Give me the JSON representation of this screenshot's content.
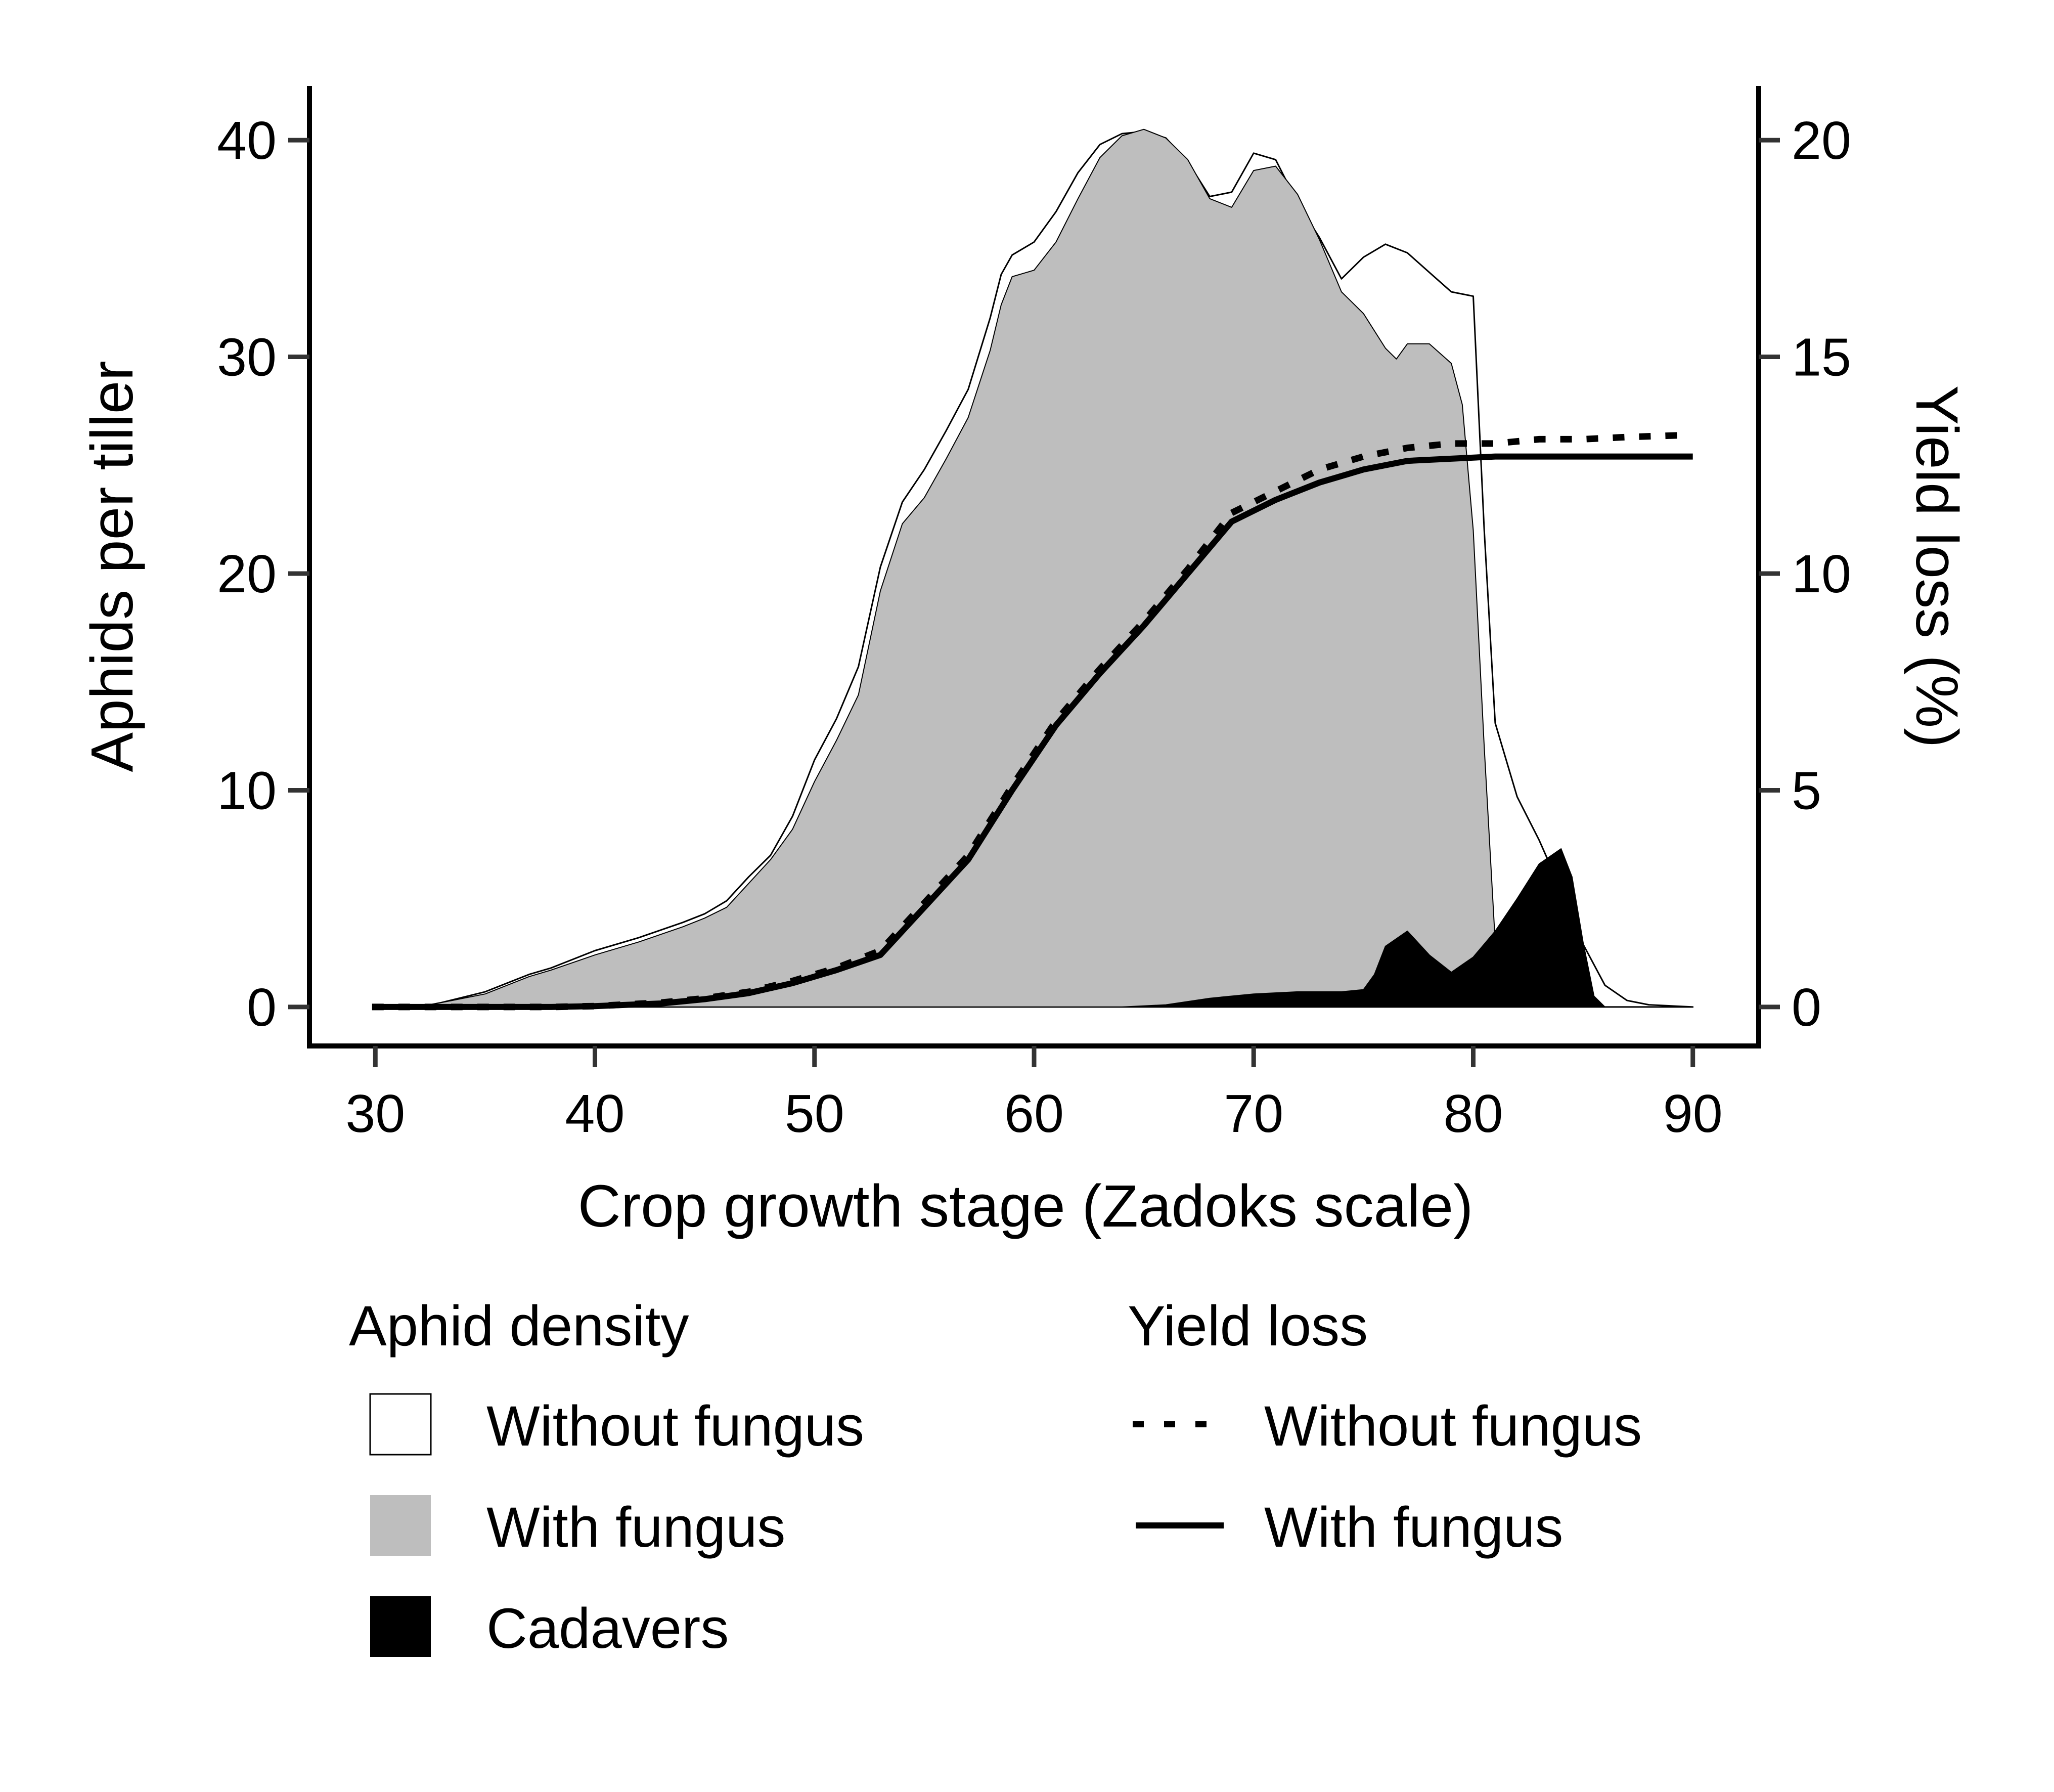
{
  "chart_data": {
    "type": "area",
    "xlabel": "Crop growth stage (Zadoks scale)",
    "ylabel": "Aphids per tiller",
    "y2label": "Yield loss (%)",
    "xlim": [
      27,
      93
    ],
    "ylim": [
      -1.8,
      42.5
    ],
    "y2lim": [
      -0.9,
      21.25
    ],
    "xticks": [
      30,
      40,
      50,
      60,
      70,
      80,
      90
    ],
    "yticks": [
      0,
      10,
      20,
      30,
      40
    ],
    "y2ticks": [
      0,
      5,
      10,
      15,
      20
    ],
    "grid": false,
    "legend_placement": "bottom",
    "legend": {
      "groups": [
        {
          "title": "Aphid density",
          "entries": [
            {
              "label": "Without fungus",
              "swatch": "white-box"
            },
            {
              "label": "With fungus",
              "swatch": "grey-box"
            },
            {
              "label": "Cadavers",
              "swatch": "black-box"
            }
          ]
        },
        {
          "title": "Yield loss",
          "entries": [
            {
              "label": "Without fungus",
              "swatch": "dotted-line"
            },
            {
              "label": "With fungus",
              "swatch": "solid-line"
            }
          ]
        }
      ]
    },
    "colors": {
      "without_fungus_fill": "#ffffff",
      "with_fungus_fill": "#bebebe",
      "cadavers_fill": "#000000",
      "line": "#000000"
    },
    "series": [
      {
        "role": "area_without_fungus",
        "axis": "left",
        "points": [
          [
            30,
            0
          ],
          [
            32,
            0
          ],
          [
            33,
            0.2
          ],
          [
            35,
            0.7
          ],
          [
            37,
            1.5
          ],
          [
            38,
            1.8
          ],
          [
            40,
            2.6
          ],
          [
            42,
            3.2
          ],
          [
            44,
            3.9
          ],
          [
            45,
            4.3
          ],
          [
            46,
            4.9
          ],
          [
            47,
            6.0
          ],
          [
            48,
            7.0
          ],
          [
            49,
            8.8
          ],
          [
            50,
            11.4
          ],
          [
            51,
            13.3
          ],
          [
            52,
            15.7
          ],
          [
            53,
            20.3
          ],
          [
            54,
            23.3
          ],
          [
            55,
            24.8
          ],
          [
            56,
            26.6
          ],
          [
            57,
            28.5
          ],
          [
            58,
            31.8
          ],
          [
            58.5,
            33.8
          ],
          [
            59,
            34.7
          ],
          [
            60,
            35.3
          ],
          [
            61,
            36.7
          ],
          [
            62,
            38.5
          ],
          [
            63,
            39.8
          ],
          [
            64,
            40.3
          ],
          [
            65,
            40.4
          ],
          [
            66,
            40.1
          ],
          [
            67,
            39.0
          ],
          [
            68,
            37.4
          ],
          [
            69,
            37.6
          ],
          [
            70,
            39.4
          ],
          [
            71,
            39.1
          ],
          [
            72,
            37.1
          ],
          [
            73,
            35.5
          ],
          [
            74,
            33.6
          ],
          [
            75,
            34.6
          ],
          [
            76,
            35.2
          ],
          [
            77,
            34.8
          ],
          [
            78,
            33.9
          ],
          [
            79,
            33.0
          ],
          [
            80,
            32.8
          ],
          [
            80.5,
            22.0
          ],
          [
            81,
            13.1
          ],
          [
            82,
            9.7
          ],
          [
            83,
            7.7
          ],
          [
            84,
            5.4
          ],
          [
            85,
            2.9
          ],
          [
            86,
            1.0
          ],
          [
            87,
            0.3
          ],
          [
            88,
            0.1
          ],
          [
            90,
            0
          ]
        ]
      },
      {
        "role": "area_with_fungus",
        "axis": "left",
        "points": [
          [
            30,
            0
          ],
          [
            32,
            0
          ],
          [
            33,
            0.2
          ],
          [
            35,
            0.6
          ],
          [
            37,
            1.4
          ],
          [
            38,
            1.7
          ],
          [
            40,
            2.4
          ],
          [
            42,
            3.0
          ],
          [
            44,
            3.7
          ],
          [
            45,
            4.1
          ],
          [
            46,
            4.6
          ],
          [
            47,
            5.7
          ],
          [
            48,
            6.8
          ],
          [
            49,
            8.2
          ],
          [
            50,
            10.4
          ],
          [
            51,
            12.3
          ],
          [
            52,
            14.4
          ],
          [
            53,
            19.2
          ],
          [
            54,
            22.3
          ],
          [
            55,
            23.5
          ],
          [
            56,
            25.3
          ],
          [
            57,
            27.2
          ],
          [
            58,
            30.3
          ],
          [
            58.5,
            32.4
          ],
          [
            59,
            33.7
          ],
          [
            60,
            34.0
          ],
          [
            61,
            35.3
          ],
          [
            62,
            37.3
          ],
          [
            63,
            39.2
          ],
          [
            64,
            40.2
          ],
          [
            65,
            40.5
          ],
          [
            66,
            40.1
          ],
          [
            67,
            39.1
          ],
          [
            68,
            37.3
          ],
          [
            69,
            36.9
          ],
          [
            70,
            38.6
          ],
          [
            71,
            38.8
          ],
          [
            72,
            37.5
          ],
          [
            73,
            35.4
          ],
          [
            74,
            33.0
          ],
          [
            75,
            32.0
          ],
          [
            76,
            30.4
          ],
          [
            76.5,
            29.9
          ],
          [
            77,
            30.6
          ],
          [
            78,
            30.6
          ],
          [
            79,
            29.7
          ],
          [
            79.5,
            27.8
          ],
          [
            80,
            22.0
          ],
          [
            80.5,
            12.0
          ],
          [
            81,
            3.0
          ],
          [
            81.5,
            0.6
          ],
          [
            82,
            0.1
          ],
          [
            83,
            0
          ],
          [
            90,
            0
          ]
        ]
      },
      {
        "role": "area_cadavers",
        "axis": "left",
        "points": [
          [
            30,
            0
          ],
          [
            64,
            0
          ],
          [
            66,
            0.1
          ],
          [
            68,
            0.4
          ],
          [
            70,
            0.6
          ],
          [
            72,
            0.7
          ],
          [
            74,
            0.7
          ],
          [
            75,
            0.8
          ],
          [
            75.5,
            1.5
          ],
          [
            76,
            2.8
          ],
          [
            77,
            3.5
          ],
          [
            78,
            2.4
          ],
          [
            79,
            1.6
          ],
          [
            80,
            2.3
          ],
          [
            81,
            3.5
          ],
          [
            82,
            5.0
          ],
          [
            83,
            6.6
          ],
          [
            84,
            7.3
          ],
          [
            84.5,
            6.0
          ],
          [
            85,
            3.0
          ],
          [
            85.5,
            0.5
          ],
          [
            86,
            0
          ],
          [
            90,
            0
          ]
        ]
      },
      {
        "role": "yield_loss_without_fungus",
        "axis": "right",
        "points": [
          [
            30,
            0
          ],
          [
            38,
            0
          ],
          [
            40,
            0.02
          ],
          [
            43,
            0.1
          ],
          [
            45,
            0.2
          ],
          [
            47,
            0.35
          ],
          [
            49,
            0.6
          ],
          [
            51,
            0.9
          ],
          [
            53,
            1.3
          ],
          [
            55,
            2.4
          ],
          [
            57,
            3.5
          ],
          [
            59,
            5.1
          ],
          [
            61,
            6.6
          ],
          [
            63,
            7.8
          ],
          [
            65,
            8.9
          ],
          [
            67,
            10.1
          ],
          [
            69,
            11.4
          ],
          [
            71,
            11.9
          ],
          [
            73,
            12.4
          ],
          [
            75,
            12.7
          ],
          [
            77,
            12.9
          ],
          [
            79,
            13.0
          ],
          [
            81,
            13.0
          ],
          [
            83,
            13.1
          ],
          [
            85,
            13.1
          ],
          [
            87,
            13.15
          ],
          [
            90,
            13.2
          ]
        ]
      },
      {
        "role": "yield_loss_with_fungus",
        "axis": "right",
        "points": [
          [
            30,
            0
          ],
          [
            38,
            0
          ],
          [
            40,
            0.02
          ],
          [
            43,
            0.08
          ],
          [
            45,
            0.18
          ],
          [
            47,
            0.32
          ],
          [
            49,
            0.55
          ],
          [
            51,
            0.85
          ],
          [
            53,
            1.2
          ],
          [
            55,
            2.3
          ],
          [
            57,
            3.4
          ],
          [
            59,
            5.0
          ],
          [
            61,
            6.5
          ],
          [
            63,
            7.7
          ],
          [
            65,
            8.8
          ],
          [
            67,
            10.0
          ],
          [
            69,
            11.2
          ],
          [
            71,
            11.7
          ],
          [
            73,
            12.1
          ],
          [
            75,
            12.4
          ],
          [
            77,
            12.6
          ],
          [
            79,
            12.65
          ],
          [
            81,
            12.7
          ],
          [
            83,
            12.7
          ],
          [
            85,
            12.7
          ],
          [
            87,
            12.7
          ],
          [
            90,
            12.7
          ]
        ]
      }
    ]
  }
}
